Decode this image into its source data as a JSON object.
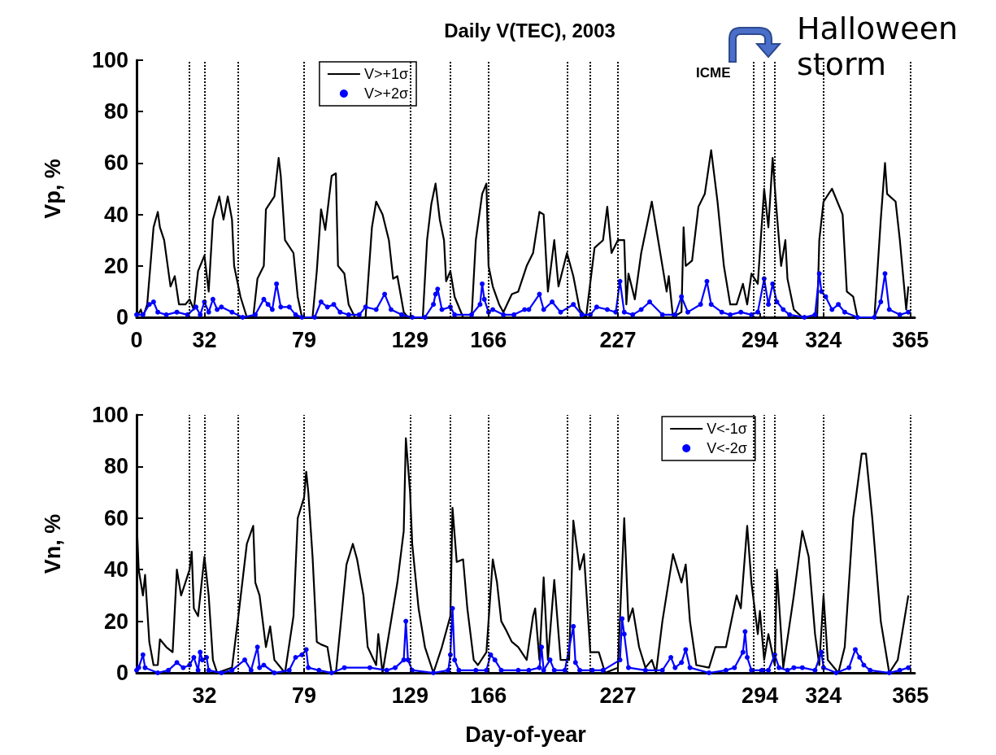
{
  "chart_data": [
    {
      "type": "line",
      "title": "Daily V(TEC), 2003",
      "ylabel": "Vp, %",
      "xlim": [
        0,
        367
      ],
      "xticks": [
        0,
        32,
        79,
        129,
        166,
        227,
        294,
        324,
        365
      ],
      "ylim": [
        0,
        100
      ],
      "yticks": [
        0,
        20,
        40,
        60,
        80,
        100
      ],
      "grid": false,
      "legend": "top left",
      "annotations": [
        "ICME",
        "Halloween storm"
      ],
      "ref_lines": [
        {
          "axis": "x",
          "value": 25
        },
        {
          "axis": "x",
          "value": 32
        },
        {
          "axis": "x",
          "value": 48
        },
        {
          "axis": "x",
          "value": 79
        },
        {
          "axis": "x",
          "value": 129
        },
        {
          "axis": "x",
          "value": 148
        },
        {
          "axis": "x",
          "value": 166
        },
        {
          "axis": "x",
          "value": 203
        },
        {
          "axis": "x",
          "value": 214
        },
        {
          "axis": "x",
          "value": 227
        },
        {
          "axis": "x",
          "value": 291
        },
        {
          "axis": "x",
          "value": 296
        },
        {
          "axis": "x",
          "value": 301
        },
        {
          "axis": "x",
          "value": 324
        },
        {
          "axis": "x",
          "value": 365
        }
      ],
      "series": [
        {
          "name": "V>+1σ",
          "color": "#000000",
          "marker": "none",
          "x": [
            0,
            2,
            3,
            5,
            8,
            10,
            11,
            13,
            16,
            18,
            20,
            23,
            25,
            27,
            29,
            32,
            34,
            36,
            39,
            41,
            43,
            45,
            46,
            49,
            52,
            55,
            57,
            60,
            61,
            65,
            67,
            68,
            70,
            74,
            76,
            78,
            83,
            85,
            87,
            89,
            92,
            94,
            95,
            98,
            100,
            103,
            108,
            111,
            113,
            116,
            119,
            121,
            123,
            126,
            128,
            135,
            137,
            139,
            141,
            143,
            145,
            146,
            148,
            150,
            154,
            158,
            160,
            163,
            165,
            166,
            168,
            171,
            173,
            177,
            180,
            184,
            187,
            190,
            192,
            194,
            197,
            199,
            203,
            206,
            209,
            212,
            216,
            220,
            222,
            224,
            227,
            230,
            231,
            232,
            235,
            238,
            243,
            246,
            250,
            251,
            253,
            257,
            258,
            259,
            262,
            265,
            268,
            271,
            274,
            277,
            278,
            280,
            283,
            286,
            288,
            290,
            293,
            296,
            298,
            300,
            302,
            304,
            306,
            307,
            310,
            314,
            321,
            322,
            324,
            328,
            333,
            335,
            338,
            340,
            348,
            351,
            353,
            354,
            358,
            360,
            363,
            364
          ],
          "values": [
            0,
            3,
            0,
            5,
            35,
            41,
            35,
            30,
            12,
            16,
            5,
            5,
            7,
            3,
            18,
            24,
            10,
            38,
            47,
            38,
            47,
            38,
            20,
            8,
            0,
            0,
            15,
            20,
            42,
            47,
            62,
            55,
            30,
            25,
            8,
            0,
            0,
            18,
            42,
            34,
            55,
            56,
            20,
            17,
            5,
            0,
            0,
            35,
            45,
            40,
            30,
            15,
            16,
            2,
            0,
            0,
            30,
            44,
            52,
            38,
            30,
            14,
            18,
            8,
            0,
            0,
            30,
            48,
            52,
            20,
            12,
            5,
            2,
            9,
            10,
            20,
            25,
            41,
            40,
            10,
            30,
            12,
            25,
            16,
            3,
            0,
            27,
            30,
            43,
            25,
            30,
            30,
            5,
            17,
            7,
            25,
            45,
            30,
            10,
            16,
            0,
            2,
            35,
            20,
            22,
            43,
            48,
            65,
            45,
            20,
            15,
            5,
            5,
            13,
            5,
            17,
            13,
            50,
            35,
            62,
            40,
            20,
            30,
            15,
            3,
            0,
            0,
            30,
            45,
            50,
            40,
            10,
            8,
            0,
            0,
            38,
            60,
            48,
            45,
            30,
            3,
            12
          ]
        },
        {
          "name": "V>+2σ",
          "color": "#0000ff",
          "marker": "circle",
          "x": [
            0,
            3,
            6,
            8,
            10,
            14,
            19,
            24,
            28,
            30,
            32,
            34,
            36,
            38,
            40,
            45,
            50,
            56,
            60,
            62,
            64,
            66,
            68,
            72,
            75,
            78,
            84,
            87,
            90,
            93,
            96,
            100,
            105,
            108,
            113,
            117,
            120,
            125,
            130,
            136,
            140,
            141,
            142,
            144,
            148,
            150,
            158,
            162,
            163,
            164,
            166,
            168,
            173,
            178,
            183,
            185,
            190,
            192,
            196,
            200,
            206,
            210,
            214,
            217,
            222,
            226,
            228,
            230,
            234,
            238,
            242,
            248,
            254,
            257,
            260,
            266,
            269,
            271,
            276,
            280,
            285,
            290,
            293,
            296,
            298,
            300,
            302,
            305,
            308,
            315,
            320,
            322,
            323,
            325,
            328,
            331,
            334,
            340,
            348,
            351,
            353,
            355,
            360,
            364
          ],
          "values": [
            1,
            1,
            5,
            6,
            2,
            1,
            2,
            1,
            4,
            1,
            6,
            2,
            7,
            3,
            4,
            2,
            0,
            1,
            7,
            5,
            3,
            13,
            4,
            4,
            1,
            0,
            0,
            6,
            4,
            5,
            2,
            1,
            1,
            4,
            3,
            9,
            3,
            1,
            0,
            0,
            5,
            9,
            11,
            3,
            4,
            1,
            1,
            5,
            13,
            7,
            2,
            3,
            1,
            1,
            3,
            3,
            9,
            3,
            6,
            2,
            5,
            1,
            1,
            4,
            3,
            2,
            14,
            2,
            1,
            3,
            6,
            1,
            1,
            8,
            2,
            5,
            14,
            5,
            2,
            1,
            2,
            1,
            2,
            15,
            5,
            13,
            6,
            3,
            1,
            0,
            1,
            17,
            10,
            8,
            3,
            5,
            2,
            0,
            0,
            6,
            17,
            3,
            1,
            2
          ]
        }
      ]
    },
    {
      "type": "line",
      "xlabel": "Day-of-year",
      "ylabel": "Vn, %",
      "xlim": [
        0,
        367
      ],
      "xticks": [
        32,
        79,
        129,
        166,
        227,
        294,
        324,
        365
      ],
      "ylim": [
        0,
        100
      ],
      "yticks": [
        0,
        20,
        40,
        60,
        80,
        100
      ],
      "grid": false,
      "legend": "top right",
      "ref_lines": [
        {
          "axis": "x",
          "value": 25
        },
        {
          "axis": "x",
          "value": 32
        },
        {
          "axis": "x",
          "value": 48
        },
        {
          "axis": "x",
          "value": 79
        },
        {
          "axis": "x",
          "value": 129
        },
        {
          "axis": "x",
          "value": 148
        },
        {
          "axis": "x",
          "value": 166
        },
        {
          "axis": "x",
          "value": 203
        },
        {
          "axis": "x",
          "value": 214
        },
        {
          "axis": "x",
          "value": 227
        },
        {
          "axis": "x",
          "value": 291
        },
        {
          "axis": "x",
          "value": 296
        },
        {
          "axis": "x",
          "value": 301
        },
        {
          "axis": "x",
          "value": 324
        },
        {
          "axis": "x",
          "value": 365
        }
      ],
      "series": [
        {
          "name": "V<-1σ",
          "color": "#000000",
          "marker": "none",
          "x": [
            0,
            1,
            3,
            4,
            5,
            6,
            8,
            10,
            11,
            14,
            17,
            19,
            21,
            23,
            25,
            26,
            27,
            29,
            32,
            34,
            36,
            38,
            45,
            48,
            52,
            55,
            56,
            58,
            61,
            63,
            65,
            67,
            70,
            74,
            76,
            79,
            80,
            81,
            83,
            85,
            87,
            90,
            92,
            94,
            97,
            99,
            102,
            104,
            107,
            109,
            113,
            114,
            116,
            119,
            123,
            126,
            127,
            129,
            130,
            133,
            136,
            140,
            144,
            148,
            149,
            151,
            154,
            156,
            159,
            161,
            165,
            168,
            170,
            172,
            174,
            177,
            180,
            184,
            187,
            188,
            190,
            192,
            194,
            197,
            200,
            204,
            206,
            209,
            211,
            214,
            218,
            221,
            227,
            230,
            232,
            234,
            237,
            240,
            243,
            245,
            248,
            253,
            257,
            259,
            261,
            264,
            270,
            273,
            278,
            283,
            285,
            288,
            290,
            293,
            294,
            296,
            298,
            301,
            302,
            305,
            310,
            314,
            317,
            320,
            322,
            324,
            326,
            331,
            334,
            338,
            342,
            344,
            347,
            351,
            355,
            359,
            362,
            364
          ],
          "values": [
            60,
            40,
            30,
            38,
            25,
            12,
            3,
            3,
            13,
            10,
            8,
            40,
            30,
            35,
            40,
            47,
            25,
            22,
            45,
            30,
            5,
            0,
            2,
            22,
            50,
            57,
            35,
            30,
            10,
            18,
            5,
            3,
            0,
            22,
            60,
            68,
            78,
            70,
            45,
            12,
            11,
            10,
            0,
            0,
            25,
            42,
            50,
            44,
            30,
            10,
            3,
            15,
            0,
            15,
            35,
            55,
            91,
            70,
            50,
            25,
            10,
            0,
            10,
            22,
            64,
            43,
            44,
            25,
            5,
            3,
            8,
            44,
            35,
            20,
            17,
            12,
            10,
            5,
            22,
            25,
            5,
            37,
            5,
            36,
            5,
            5,
            59,
            40,
            46,
            8,
            8,
            0,
            2,
            60,
            20,
            25,
            10,
            2,
            5,
            0,
            20,
            46,
            35,
            42,
            20,
            3,
            2,
            10,
            10,
            30,
            25,
            57,
            35,
            15,
            24,
            5,
            15,
            3,
            40,
            2,
            30,
            55,
            45,
            15,
            3,
            30,
            5,
            0,
            10,
            60,
            85,
            85,
            60,
            20,
            0,
            5,
            20,
            30
          ]
        },
        {
          "name": "V<-2σ",
          "color": "#0000ff",
          "marker": "circle",
          "x": [
            0,
            1,
            3,
            4,
            10,
            15,
            19,
            22,
            25,
            27,
            29,
            30,
            31,
            33,
            34,
            40,
            45,
            51,
            54,
            57,
            58,
            60,
            65,
            72,
            75,
            78,
            80,
            81,
            86,
            92,
            98,
            110,
            118,
            122,
            126,
            127,
            128,
            130,
            140,
            147,
            148,
            149,
            150,
            152,
            160,
            165,
            167,
            169,
            172,
            180,
            185,
            190,
            191,
            192,
            195,
            197,
            202,
            206,
            207,
            209,
            215,
            220,
            228,
            229,
            230,
            232,
            240,
            248,
            252,
            254,
            257,
            259,
            261,
            270,
            278,
            282,
            286,
            287,
            288,
            290,
            295,
            298,
            301,
            303,
            307,
            310,
            314,
            320,
            323,
            324,
            330,
            336,
            339,
            341,
            343,
            346,
            355,
            360,
            364
          ],
          "values": [
            1,
            2,
            7,
            2,
            0,
            1,
            4,
            2,
            3,
            6,
            1,
            8,
            5,
            6,
            1,
            0,
            1,
            5,
            1,
            10,
            2,
            3,
            0,
            1,
            6,
            7,
            9,
            2,
            1,
            0,
            2,
            2,
            1,
            2,
            5,
            20,
            5,
            1,
            0,
            1,
            7,
            25,
            5,
            1,
            1,
            1,
            7,
            5,
            1,
            1,
            1,
            2,
            10,
            1,
            5,
            1,
            1,
            18,
            4,
            1,
            1,
            1,
            5,
            21,
            15,
            2,
            1,
            1,
            6,
            2,
            4,
            9,
            2,
            0,
            1,
            2,
            8,
            16,
            6,
            1,
            1,
            1,
            7,
            2,
            1,
            2,
            2,
            1,
            8,
            2,
            0,
            2,
            9,
            6,
            3,
            1,
            0,
            1,
            2
          ]
        }
      ]
    }
  ]
}
